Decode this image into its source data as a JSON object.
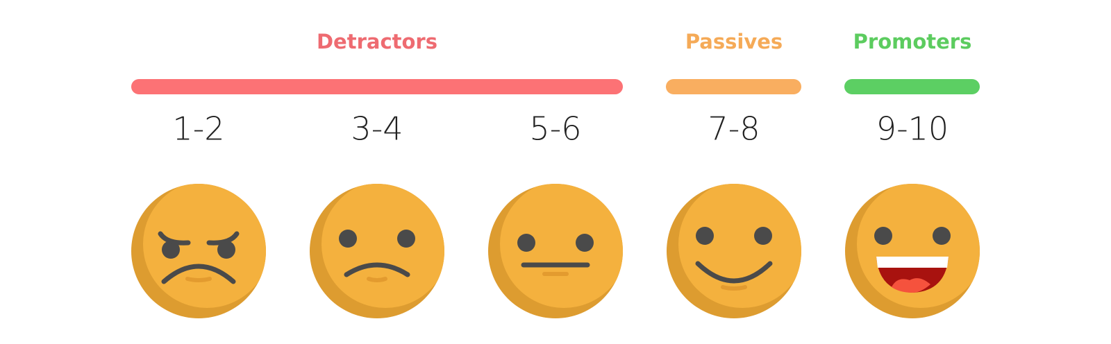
{
  "groups": [
    {
      "label": "Detractors",
      "ranges": [
        "1-2",
        "3-4",
        "5-6"
      ]
    },
    {
      "label": "Passives",
      "ranges": [
        "7-8"
      ]
    },
    {
      "label": "Promoters",
      "ranges": [
        "9-10"
      ]
    }
  ]
}
